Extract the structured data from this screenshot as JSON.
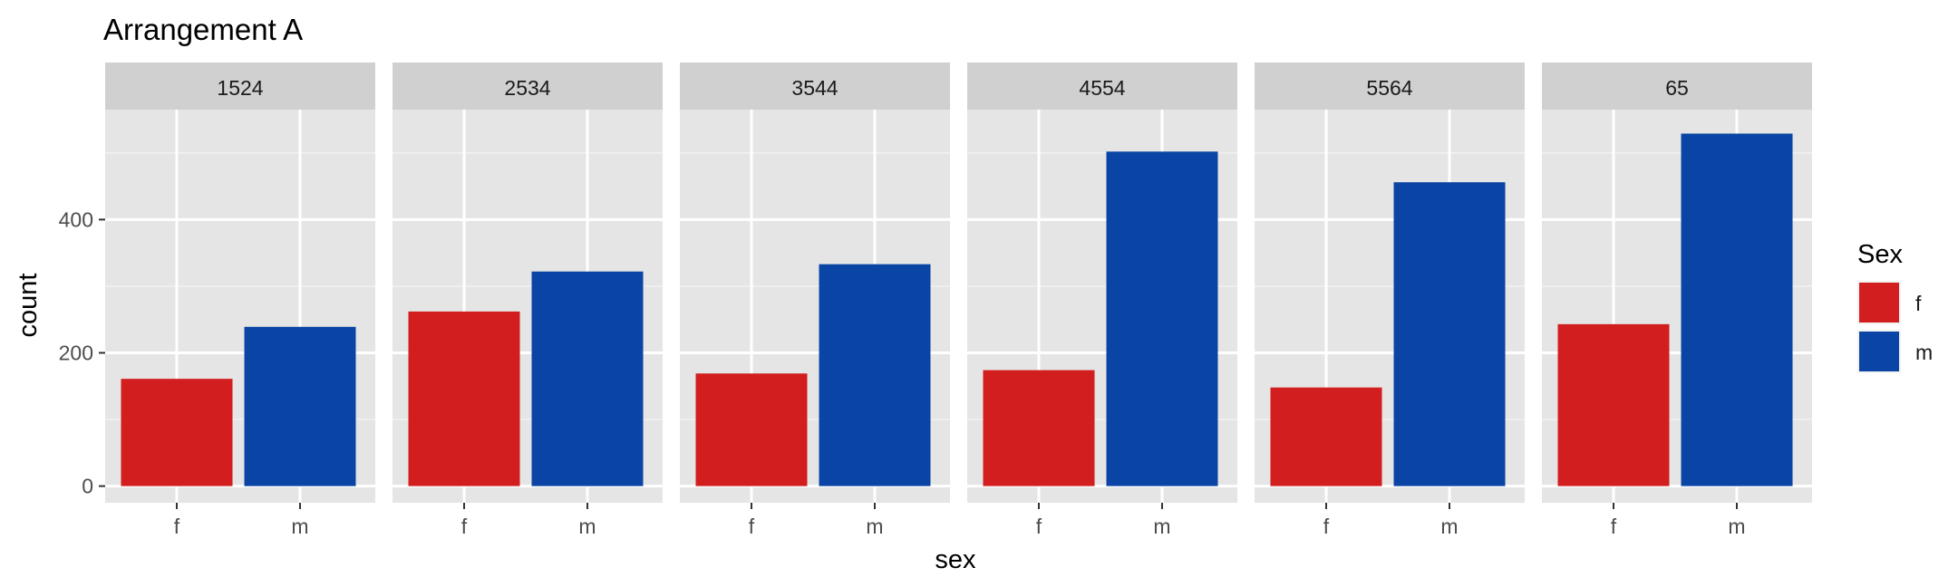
{
  "chart_data": {
    "type": "bar",
    "title": "Arrangement A",
    "xlabel": "sex",
    "ylabel": "count",
    "categories": [
      "f",
      "m"
    ],
    "ylim": [
      -25,
      565
    ],
    "y_ticks": [
      0,
      200,
      400
    ],
    "grid": true,
    "legend_placement": "right",
    "legend": {
      "title": "Sex",
      "items": [
        {
          "label": "f",
          "color": "#d21e1e"
        },
        {
          "label": "m",
          "color": "#0a45a5"
        }
      ]
    },
    "panels": [
      {
        "label": "1524",
        "values": [
          161,
          239
        ]
      },
      {
        "label": "2534",
        "values": [
          262,
          322
        ]
      },
      {
        "label": "3544",
        "values": [
          169,
          333
        ]
      },
      {
        "label": "4554",
        "values": [
          174,
          502
        ]
      },
      {
        "label": "5564",
        "values": [
          148,
          456
        ]
      },
      {
        "label": "65",
        "values": [
          243,
          529
        ]
      }
    ],
    "colors": {
      "panel_background": "#e5e5e5",
      "strip_background": "#d0d0d0",
      "grid_major": "#ffffff",
      "grid_minor": "#f2f2f2"
    }
  }
}
